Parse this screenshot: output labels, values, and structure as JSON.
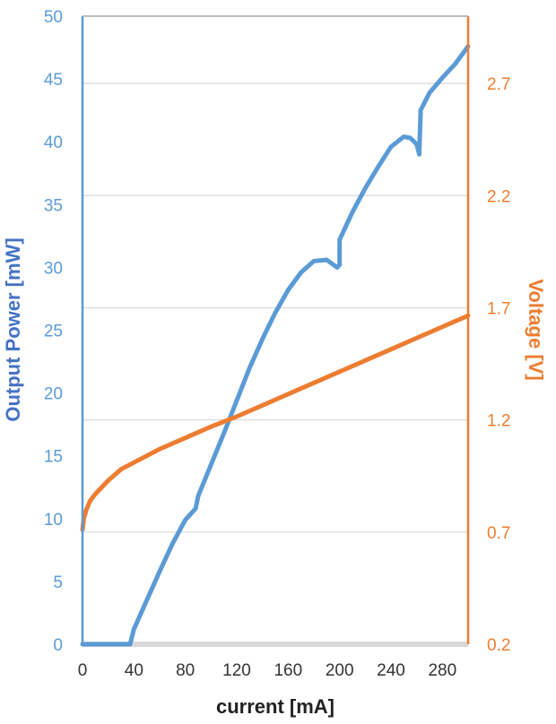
{
  "chart_data": {
    "type": "line",
    "xlabel": "current [mA]",
    "ylabel_left": "Output Power [mW]",
    "ylabel_right": "Voltage [V]",
    "xlim": [
      0,
      300
    ],
    "ylim_left": [
      0,
      50
    ],
    "ylim_right": [
      0.2,
      3.0
    ],
    "x_ticks": [
      "0",
      "40",
      "80",
      "120",
      "160",
      "200",
      "240",
      "280"
    ],
    "x_tick_values": [
      0,
      40,
      80,
      120,
      160,
      200,
      240,
      280
    ],
    "y_left_ticks": [
      "0",
      "5",
      "10",
      "15",
      "20",
      "25",
      "30",
      "35",
      "40",
      "45",
      "50"
    ],
    "y_left_tick_values": [
      0,
      5,
      10,
      15,
      20,
      25,
      30,
      35,
      40,
      45,
      50
    ],
    "y_right_ticks": [
      "0.2",
      "0.7",
      "1.2",
      "1.7",
      "2.2",
      "2.7"
    ],
    "y_right_tick_values": [
      0.2,
      0.7,
      1.2,
      1.7,
      2.2,
      2.7
    ],
    "grid": "horizontal (right axis)",
    "colors": {
      "power": "#5b9bd5",
      "voltage": "#ed7d31",
      "grid": "#d9d9d9",
      "baseline": "#d9d9d9"
    },
    "series": [
      {
        "axis": "left",
        "x": [
          0,
          37,
          40,
          50,
          60,
          70,
          80,
          88,
          90,
          100,
          110,
          120,
          130,
          140,
          150,
          160,
          170,
          180,
          190,
          198,
          200,
          200,
          210,
          220,
          230,
          240,
          250,
          255,
          260,
          262,
          262,
          263,
          263,
          270,
          280,
          290,
          300
        ],
        "y": [
          0,
          0,
          1.2,
          3.5,
          5.8,
          8.0,
          9.9,
          10.8,
          11.8,
          14.3,
          16.8,
          19.4,
          22.0,
          24.3,
          26.4,
          28.2,
          29.6,
          30.5,
          30.6,
          30.0,
          30.2,
          32.2,
          34.4,
          36.3,
          38.0,
          39.6,
          40.4,
          40.3,
          39.8,
          39.0,
          39.1,
          42.2,
          42.5,
          43.9,
          45.1,
          46.2,
          47.6
        ]
      },
      {
        "axis": "right",
        "x": [
          0,
          1,
          3,
          6,
          10,
          15,
          20,
          25,
          30,
          40,
          60,
          80,
          100,
          120,
          140,
          160,
          180,
          200,
          220,
          240,
          260,
          280,
          300
        ],
        "y": [
          0.71,
          0.76,
          0.8,
          0.84,
          0.87,
          0.9,
          0.93,
          0.955,
          0.98,
          1.01,
          1.07,
          1.12,
          1.17,
          1.215,
          1.265,
          1.315,
          1.365,
          1.415,
          1.465,
          1.515,
          1.565,
          1.615,
          1.665
        ]
      }
    ]
  }
}
